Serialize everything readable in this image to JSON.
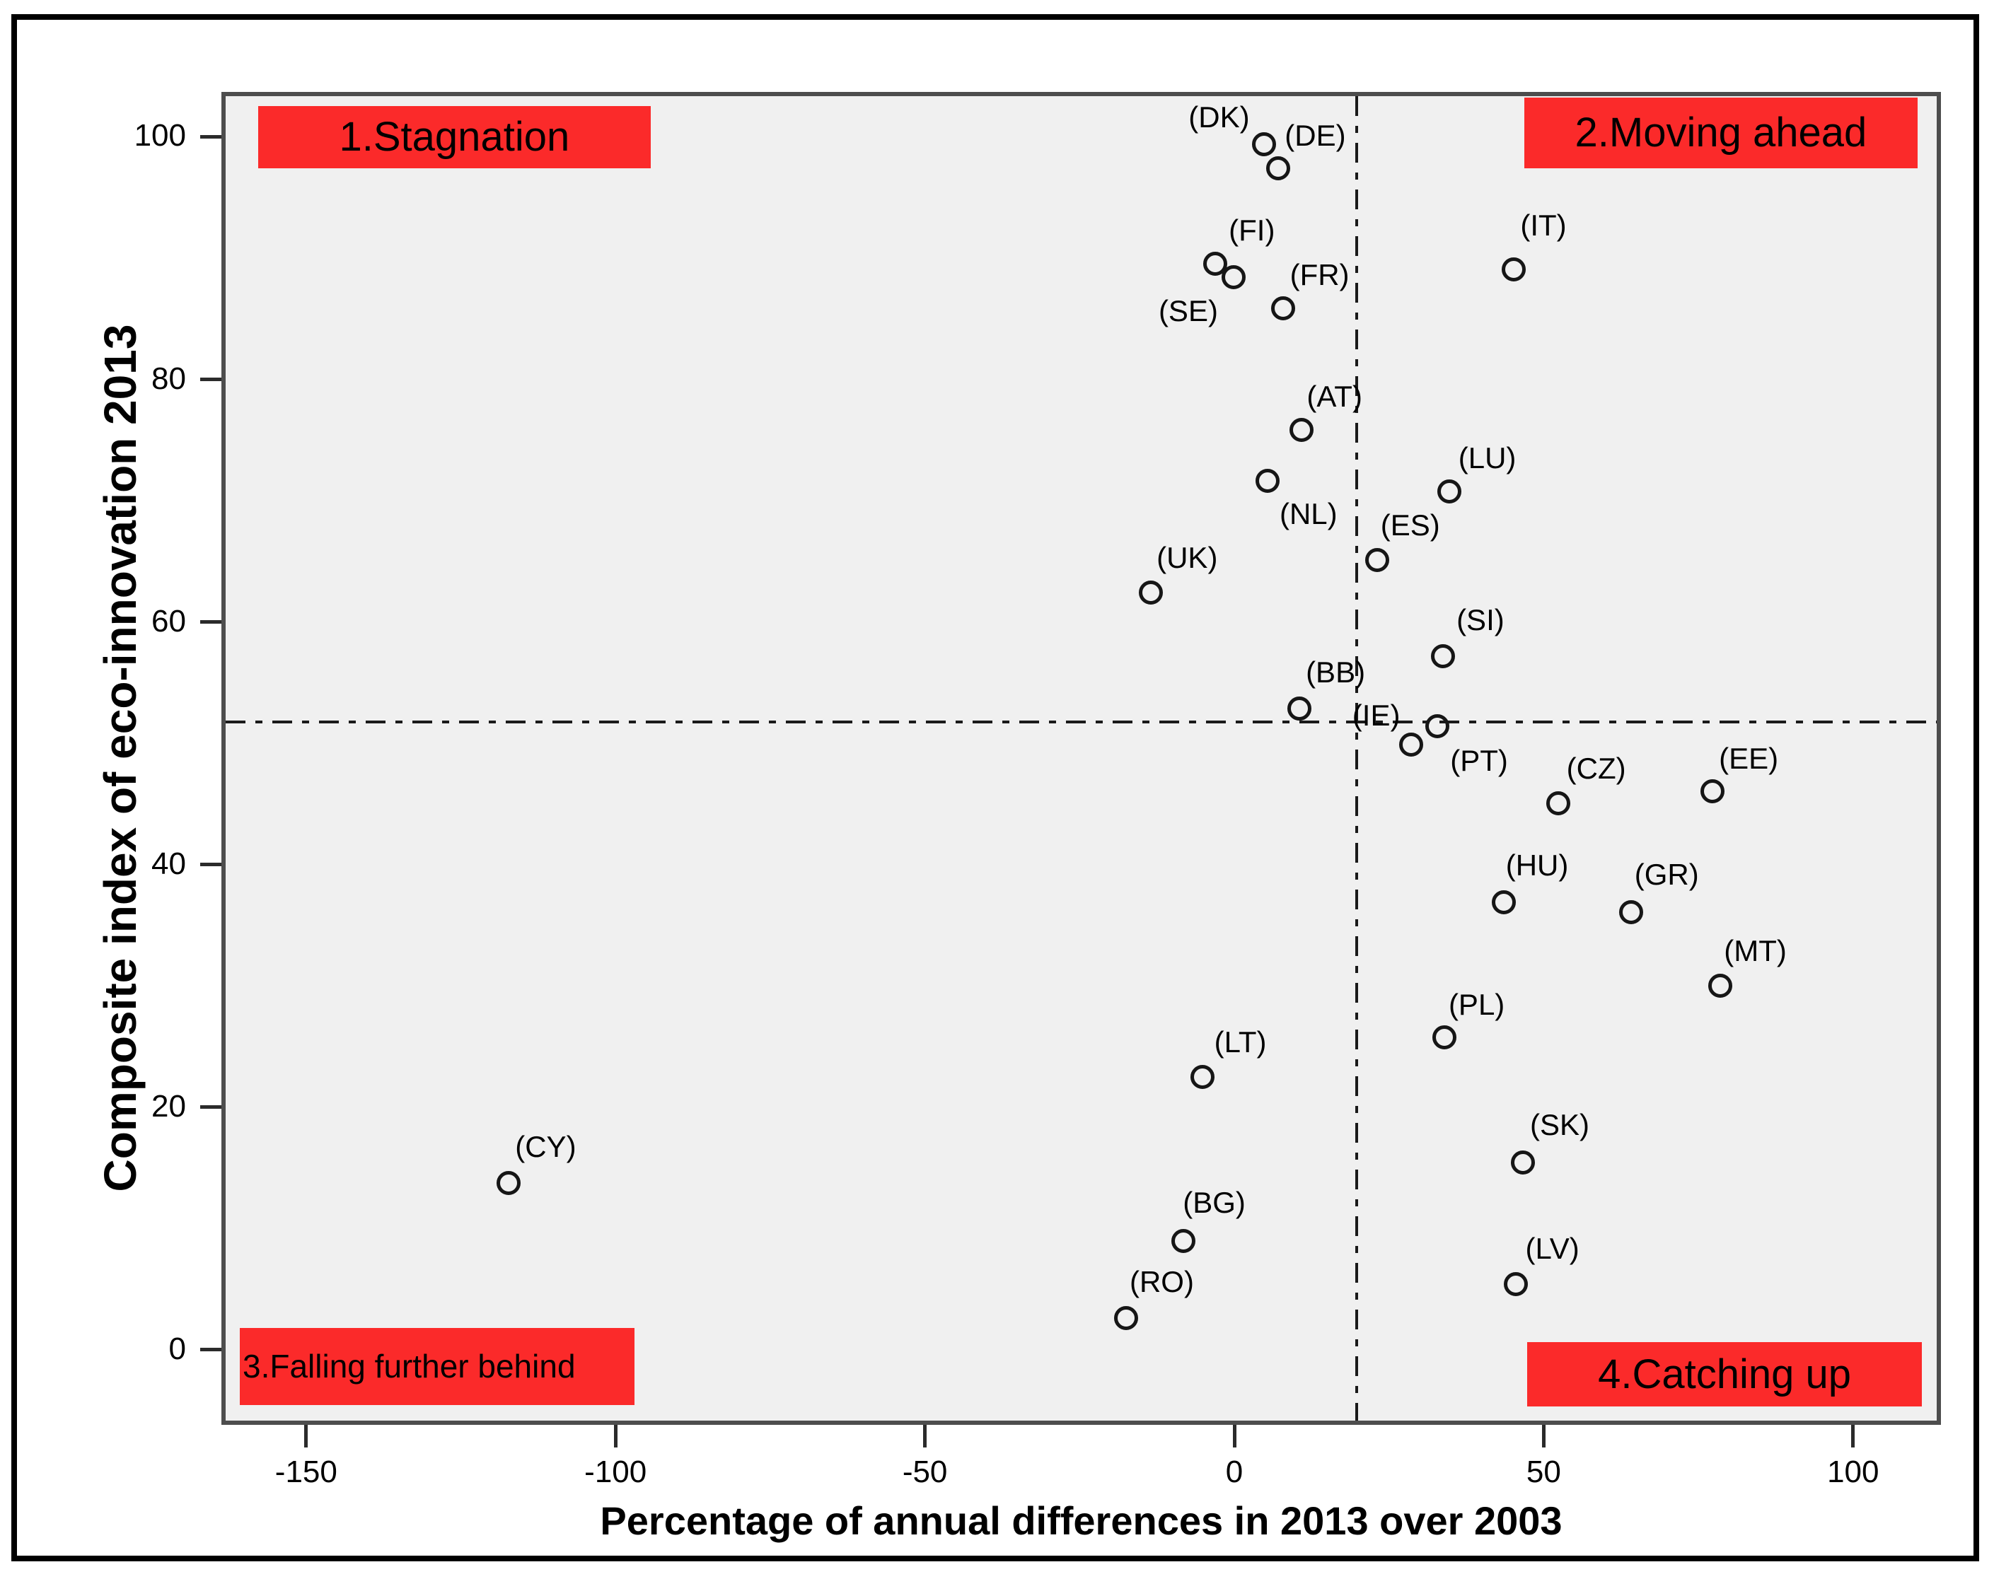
{
  "figure": {
    "background_color": "#ffffff",
    "outer_border_color": "#000000",
    "plot_background_color": "#f0f0f0",
    "plot_border_color": "#4d4d4d",
    "accent_red": "#fb2a2a"
  },
  "chart_data": {
    "type": "scatter",
    "title": "",
    "xlabel": "Percentage of annual differences in 2013 over 2003",
    "ylabel": "Composite index of eco-innovation 2013",
    "xlim": [
      -163.7,
      114.2
    ],
    "ylim": [
      -6.2,
      103.7
    ],
    "x_ticks": [
      -150,
      -100,
      -50,
      0,
      50,
      100
    ],
    "y_ticks": [
      0,
      20,
      40,
      60,
      80,
      100
    ],
    "grid": false,
    "legend": "none",
    "marker": {
      "shape": "open-circle",
      "color": "#161616"
    },
    "reference_lines": {
      "horizontal_y": 51.8,
      "vertical_x": 20,
      "style": "dash-dot",
      "color": "#1a1a1a"
    },
    "quadrant_labels": [
      {
        "label": "1.Stagnation",
        "x1": -158.4,
        "y1": 102.9,
        "x2": -94.7,
        "y2": 97.7,
        "bg": "#fb2a2a",
        "text_color": "#000000",
        "align": "center"
      },
      {
        "label": "2.Moving ahead",
        "x1": 47.2,
        "y1": 103.6,
        "x2": 111.1,
        "y2": 97.7,
        "bg": "#fb2a2a",
        "text_color": "#000000",
        "align": "center"
      },
      {
        "label": "3.Falling further behind",
        "x1": -161.4,
        "y1": 1.5,
        "x2": -97.3,
        "y2": -4.9,
        "bg": "#fb2a2a",
        "text_color": "#000000",
        "align": "left"
      },
      {
        "label": "4.Catching up",
        "x1": 47.7,
        "y1": 0.3,
        "x2": 111.8,
        "y2": -5.0,
        "bg": "#fb2a2a",
        "text_color": "#000000",
        "align": "center"
      }
    ],
    "points": [
      {
        "label": "(DK)",
        "x": 5,
        "y": 99.7,
        "lx": -64,
        "ly": -38
      },
      {
        "label": "(DE)",
        "x": 7.3,
        "y": 97.7,
        "lx": 52,
        "ly": -46
      },
      {
        "label": "(FI)",
        "x": -3,
        "y": 89.8,
        "lx": 52,
        "ly": -47
      },
      {
        "label": "(SE)",
        "x": 0,
        "y": 88.7,
        "lx": -64,
        "ly": 48
      },
      {
        "label": "(FR)",
        "x": 8,
        "y": 86.1,
        "lx": 52,
        "ly": -47
      },
      {
        "label": "(IT)",
        "x": 45.5,
        "y": 89.3,
        "lx": 42,
        "ly": -62
      },
      {
        "label": "(AT)",
        "x": 11,
        "y": 76.0,
        "lx": 47,
        "ly": -47
      },
      {
        "label": "(NL)",
        "x": 5.5,
        "y": 71.8,
        "lx": 58,
        "ly": 47
      },
      {
        "label": "(LU)",
        "x": 35,
        "y": 70.9,
        "lx": 54,
        "ly": -47
      },
      {
        "label": "(ES)",
        "x": 23.3,
        "y": 65.2,
        "lx": 47,
        "ly": -49
      },
      {
        "label": "(UK)",
        "x": -13.4,
        "y": 62.5,
        "lx": 51,
        "ly": -49
      },
      {
        "label": "(SI)",
        "x": 34,
        "y": 57.2,
        "lx": 53,
        "ly": -51
      },
      {
        "label": "(BB)",
        "x": 10.7,
        "y": 52.9,
        "lx": 51,
        "ly": -51
      },
      {
        "label": "(PT)",
        "x": 33.1,
        "y": 51.4,
        "lx": 59,
        "ly": 49
      },
      {
        "label": "(IE)",
        "x": 28.8,
        "y": 49.9,
        "lx": -49,
        "ly": -41
      },
      {
        "label": "(CZ)",
        "x": 52.7,
        "y": 45.0,
        "lx": 54,
        "ly": -49
      },
      {
        "label": "(EE)",
        "x": 77.8,
        "y": 46.0,
        "lx": 51,
        "ly": -46
      },
      {
        "label": "(HU)",
        "x": 43.9,
        "y": 36.8,
        "lx": 47,
        "ly": -52
      },
      {
        "label": "(GR)",
        "x": 64.6,
        "y": 36.0,
        "lx": 50,
        "ly": -53
      },
      {
        "label": "(MT)",
        "x": 79,
        "y": 29.9,
        "lx": 50,
        "ly": -49
      },
      {
        "label": "(PL)",
        "x": 34.2,
        "y": 25.6,
        "lx": 46,
        "ly": -46
      },
      {
        "label": "(LT)",
        "x": -5.1,
        "y": 22.3,
        "lx": 54,
        "ly": -49
      },
      {
        "label": "(SK)",
        "x": 47,
        "y": 15.2,
        "lx": 52,
        "ly": -53
      },
      {
        "label": "(CY)",
        "x": -117.7,
        "y": 13.5,
        "lx": 52,
        "ly": -51
      },
      {
        "label": "(BG)",
        "x": -8.2,
        "y": 8.7,
        "lx": 44,
        "ly": -54
      },
      {
        "label": "(RO)",
        "x": -17.4,
        "y": 2.3,
        "lx": 50,
        "ly": -51
      },
      {
        "label": "(LV)",
        "x": 45.8,
        "y": 5.1,
        "lx": 52,
        "ly": -50
      }
    ]
  }
}
